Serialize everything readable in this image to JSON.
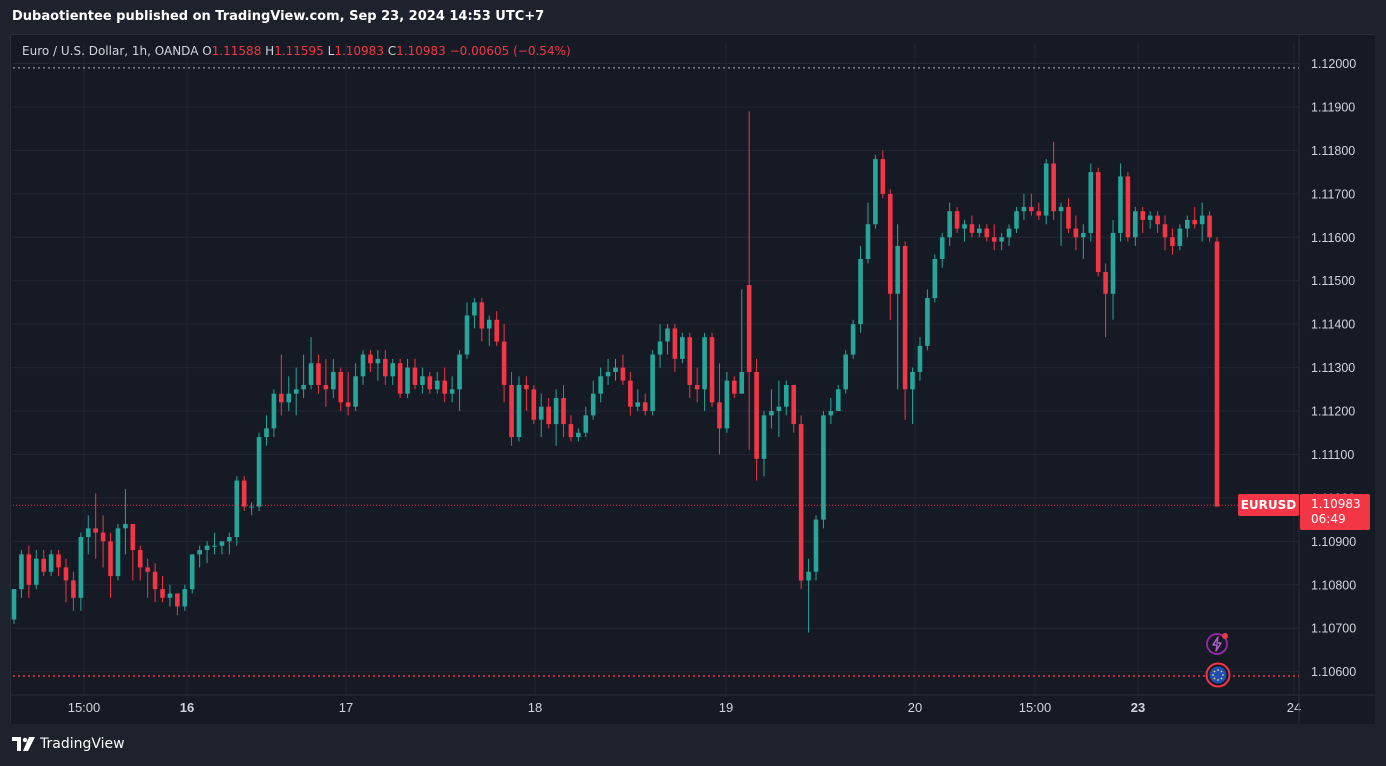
{
  "header": {
    "text": "Dubaotientee published on TradingView.com, Sep 23, 2024 14:53 UTC+7"
  },
  "legend": {
    "symbol": "Euro / U.S. Dollar, 1h, OANDA",
    "o_label": "O",
    "o_value": "1.11588",
    "h_label": "H",
    "h_value": "1.11595",
    "l_label": "L",
    "l_value": "1.10983",
    "c_label": "C",
    "c_value": "1.10983",
    "change": "−0.00605 (−0.54%)"
  },
  "symbol_tag": "EURUSD",
  "price_tag": {
    "price": "1.10983",
    "countdown": "06:49"
  },
  "brand": {
    "name": "TradingView"
  },
  "icons": {
    "flash": "lightning-icon",
    "event": "eu-flag-icon",
    "logo": "tradingview-logo-icon"
  },
  "colors": {
    "up": "#26a69a",
    "down": "#f23645",
    "background": "#161a25",
    "grid": "#232733",
    "text": "#d1d4dc"
  },
  "chart_data": {
    "type": "candlestick",
    "ylim": [
      1.1059,
      1.1203
    ],
    "yticks": [
      "1.12000",
      "1.11900",
      "1.11800",
      "1.11700",
      "1.11600",
      "1.11500",
      "1.11400",
      "1.11300",
      "1.11200",
      "1.11100",
      "1.11000",
      "1.10900",
      "1.10800",
      "1.10700",
      "1.10600"
    ],
    "xticks": [
      "15:00",
      "16",
      "17",
      "18",
      "19",
      "20",
      "15:00",
      "23",
      "24"
    ],
    "xticks_bold": [
      false,
      true,
      false,
      false,
      false,
      false,
      false,
      true,
      false
    ],
    "last_price": 1.10983,
    "dotted_levels": [
      1.1199,
      1.1059
    ],
    "candles": [
      [
        1.1072,
        1.1079,
        1.1071,
        1.1079
      ],
      [
        1.1079,
        1.1088,
        1.1077,
        1.1087
      ],
      [
        1.1087,
        1.1089,
        1.1077,
        1.108
      ],
      [
        1.108,
        1.1088,
        1.1079,
        1.1086
      ],
      [
        1.1086,
        1.1088,
        1.1082,
        1.1083
      ],
      [
        1.1083,
        1.1088,
        1.1082,
        1.1087
      ],
      [
        1.1087,
        1.1088,
        1.1082,
        1.1084
      ],
      [
        1.1084,
        1.1086,
        1.1076,
        1.1081
      ],
      [
        1.1081,
        1.1083,
        1.1074,
        1.1077
      ],
      [
        1.1077,
        1.1092,
        1.1074,
        1.1091
      ],
      [
        1.1091,
        1.1096,
        1.1087,
        1.1093
      ],
      [
        1.1093,
        1.1101,
        1.1086,
        1.1092
      ],
      [
        1.1092,
        1.1096,
        1.1084,
        1.109
      ],
      [
        1.109,
        1.1092,
        1.1077,
        1.1082
      ],
      [
        1.1082,
        1.1094,
        1.1081,
        1.1093
      ],
      [
        1.1093,
        1.1102,
        1.1087,
        1.1094
      ],
      [
        1.1094,
        1.1094,
        1.1081,
        1.1088
      ],
      [
        1.1088,
        1.1089,
        1.1081,
        1.1084
      ],
      [
        1.1084,
        1.1086,
        1.1077,
        1.1083
      ],
      [
        1.1083,
        1.1085,
        1.1076,
        1.1079
      ],
      [
        1.1079,
        1.1082,
        1.1076,
        1.1077
      ],
      [
        1.1077,
        1.108,
        1.1075,
        1.1078
      ],
      [
        1.1078,
        1.1078,
        1.1073,
        1.1075
      ],
      [
        1.1075,
        1.108,
        1.1074,
        1.1079
      ],
      [
        1.1079,
        1.1087,
        1.1078,
        1.1087
      ],
      [
        1.1087,
        1.1089,
        1.1084,
        1.1088
      ],
      [
        1.1088,
        1.109,
        1.1085,
        1.1089
      ],
      [
        1.1089,
        1.1092,
        1.1087,
        1.1089
      ],
      [
        1.1089,
        1.109,
        1.1087,
        1.109
      ],
      [
        1.109,
        1.1092,
        1.1087,
        1.1091
      ],
      [
        1.1091,
        1.1105,
        1.1089,
        1.1104
      ],
      [
        1.1104,
        1.1105,
        1.1097,
        1.1098
      ],
      [
        1.1098,
        1.1099,
        1.1096,
        1.1098
      ],
      [
        1.1098,
        1.1115,
        1.1097,
        1.1114
      ],
      [
        1.1114,
        1.1119,
        1.1112,
        1.1116
      ],
      [
        1.1116,
        1.1125,
        1.1114,
        1.1124
      ],
      [
        1.1124,
        1.1133,
        1.1119,
        1.1122
      ],
      [
        1.1122,
        1.1128,
        1.112,
        1.1124
      ],
      [
        1.1124,
        1.113,
        1.1119,
        1.1125
      ],
      [
        1.1125,
        1.1133,
        1.1123,
        1.1126
      ],
      [
        1.1126,
        1.1137,
        1.1125,
        1.1131
      ],
      [
        1.1131,
        1.1133,
        1.1124,
        1.1126
      ],
      [
        1.1126,
        1.1132,
        1.1121,
        1.1125
      ],
      [
        1.1125,
        1.1132,
        1.1123,
        1.1129
      ],
      [
        1.1129,
        1.113,
        1.112,
        1.1122
      ],
      [
        1.1122,
        1.1129,
        1.1119,
        1.1121
      ],
      [
        1.1121,
        1.1131,
        1.112,
        1.1128
      ],
      [
        1.1128,
        1.1134,
        1.1126,
        1.1133
      ],
      [
        1.1133,
        1.1134,
        1.1129,
        1.1131
      ],
      [
        1.1131,
        1.1134,
        1.1127,
        1.1132
      ],
      [
        1.1132,
        1.1134,
        1.1126,
        1.1128
      ],
      [
        1.1128,
        1.1132,
        1.1126,
        1.1131
      ],
      [
        1.1131,
        1.1132,
        1.1123,
        1.1124
      ],
      [
        1.1124,
        1.1132,
        1.1123,
        1.113
      ],
      [
        1.113,
        1.1132,
        1.1125,
        1.1126
      ],
      [
        1.1126,
        1.113,
        1.1124,
        1.1128
      ],
      [
        1.1128,
        1.1129,
        1.1124,
        1.1125
      ],
      [
        1.1125,
        1.1129,
        1.1124,
        1.1127
      ],
      [
        1.1127,
        1.113,
        1.1122,
        1.1124
      ],
      [
        1.1124,
        1.1128,
        1.1122,
        1.1125
      ],
      [
        1.1125,
        1.1134,
        1.112,
        1.1133
      ],
      [
        1.1133,
        1.1145,
        1.1132,
        1.1142
      ],
      [
        1.1142,
        1.1146,
        1.1139,
        1.1145
      ],
      [
        1.1145,
        1.1146,
        1.1136,
        1.1139
      ],
      [
        1.1139,
        1.1142,
        1.1135,
        1.1141
      ],
      [
        1.1141,
        1.1143,
        1.1135,
        1.1136
      ],
      [
        1.1136,
        1.114,
        1.1122,
        1.1126
      ],
      [
        1.1126,
        1.1129,
        1.1112,
        1.1114
      ],
      [
        1.1114,
        1.1128,
        1.1113,
        1.1126
      ],
      [
        1.1126,
        1.1128,
        1.112,
        1.1125
      ],
      [
        1.1125,
        1.1126,
        1.1117,
        1.1118
      ],
      [
        1.1118,
        1.1124,
        1.1114,
        1.1121
      ],
      [
        1.1121,
        1.1123,
        1.1116,
        1.1117
      ],
      [
        1.1117,
        1.1125,
        1.1112,
        1.1123
      ],
      [
        1.1123,
        1.1126,
        1.1114,
        1.1117
      ],
      [
        1.1117,
        1.1119,
        1.1113,
        1.1114
      ],
      [
        1.1114,
        1.1116,
        1.1113,
        1.1115
      ],
      [
        1.1115,
        1.1121,
        1.1114,
        1.1119
      ],
      [
        1.1119,
        1.1127,
        1.1118,
        1.1124
      ],
      [
        1.1124,
        1.113,
        1.1122,
        1.1128
      ],
      [
        1.1128,
        1.1132,
        1.1126,
        1.1129
      ],
      [
        1.1129,
        1.1132,
        1.1127,
        1.113
      ],
      [
        1.113,
        1.1133,
        1.1126,
        1.1127
      ],
      [
        1.1127,
        1.1129,
        1.1119,
        1.1121
      ],
      [
        1.1121,
        1.1125,
        1.112,
        1.1122
      ],
      [
        1.1122,
        1.1124,
        1.1119,
        1.112
      ],
      [
        1.112,
        1.1134,
        1.1119,
        1.1133
      ],
      [
        1.1133,
        1.114,
        1.113,
        1.1136
      ],
      [
        1.1136,
        1.114,
        1.1133,
        1.1139
      ],
      [
        1.1139,
        1.114,
        1.1129,
        1.1132
      ],
      [
        1.1132,
        1.1138,
        1.1131,
        1.1137
      ],
      [
        1.1137,
        1.1138,
        1.1123,
        1.1126
      ],
      [
        1.1126,
        1.113,
        1.1122,
        1.1125
      ],
      [
        1.1125,
        1.1138,
        1.112,
        1.1137
      ],
      [
        1.1137,
        1.1138,
        1.1121,
        1.1122
      ],
      [
        1.1122,
        1.1131,
        1.111,
        1.1116
      ],
      [
        1.1116,
        1.1129,
        1.1115,
        1.1127
      ],
      [
        1.1127,
        1.1128,
        1.1123,
        1.1124
      ],
      [
        1.1124,
        1.1148,
        1.1124,
        1.1129
      ],
      [
        1.1149,
        1.1189,
        1.1111,
        1.1129
      ],
      [
        1.1129,
        1.1132,
        1.1104,
        1.1109
      ],
      [
        1.1109,
        1.112,
        1.1105,
        1.1119
      ],
      [
        1.1119,
        1.1125,
        1.1116,
        1.112
      ],
      [
        1.112,
        1.1127,
        1.1114,
        1.1121
      ],
      [
        1.1121,
        1.1127,
        1.1119,
        1.1126
      ],
      [
        1.1126,
        1.1126,
        1.1115,
        1.1117
      ],
      [
        1.1117,
        1.1119,
        1.1079,
        1.1081
      ],
      [
        1.1081,
        1.1086,
        1.1069,
        1.1083
      ],
      [
        1.1083,
        1.1096,
        1.1081,
        1.1095
      ],
      [
        1.1095,
        1.112,
        1.1093,
        1.1119
      ],
      [
        1.1119,
        1.1123,
        1.1117,
        1.112
      ],
      [
        1.112,
        1.1126,
        1.112,
        1.1125
      ],
      [
        1.1125,
        1.1134,
        1.1124,
        1.1133
      ],
      [
        1.1133,
        1.1141,
        1.1132,
        1.114
      ],
      [
        1.114,
        1.1158,
        1.1138,
        1.1155
      ],
      [
        1.1155,
        1.1168,
        1.1154,
        1.1163
      ],
      [
        1.1163,
        1.1179,
        1.1162,
        1.1178
      ],
      [
        1.1178,
        1.118,
        1.1169,
        1.117
      ],
      [
        1.117,
        1.1171,
        1.1141,
        1.1147
      ],
      [
        1.1147,
        1.1163,
        1.1125,
        1.1158
      ],
      [
        1.1158,
        1.1159,
        1.1118,
        1.1125
      ],
      [
        1.1125,
        1.113,
        1.1117,
        1.1129
      ],
      [
        1.1129,
        1.1137,
        1.1127,
        1.1135
      ],
      [
        1.1135,
        1.1148,
        1.1134,
        1.1146
      ],
      [
        1.1146,
        1.1156,
        1.1145,
        1.1155
      ],
      [
        1.1155,
        1.1161,
        1.1153,
        1.116
      ],
      [
        1.116,
        1.1168,
        1.1158,
        1.1166
      ],
      [
        1.1166,
        1.1167,
        1.1161,
        1.1162
      ],
      [
        1.1162,
        1.1164,
        1.1159,
        1.1163
      ],
      [
        1.1163,
        1.1165,
        1.116,
        1.1161
      ],
      [
        1.1161,
        1.1163,
        1.116,
        1.1162
      ],
      [
        1.1162,
        1.1163,
        1.1159,
        1.116
      ],
      [
        1.116,
        1.1163,
        1.1157,
        1.1159
      ],
      [
        1.1159,
        1.1161,
        1.1157,
        1.116
      ],
      [
        1.116,
        1.1163,
        1.1158,
        1.1162
      ],
      [
        1.1162,
        1.1167,
        1.1161,
        1.1166
      ],
      [
        1.1166,
        1.117,
        1.1164,
        1.1167
      ],
      [
        1.1167,
        1.117,
        1.1165,
        1.1166
      ],
      [
        1.1166,
        1.1168,
        1.1164,
        1.1165
      ],
      [
        1.1165,
        1.1178,
        1.1163,
        1.1177
      ],
      [
        1.1177,
        1.1182,
        1.1164,
        1.1166
      ],
      [
        1.1166,
        1.1168,
        1.1158,
        1.1167
      ],
      [
        1.1167,
        1.1169,
        1.1161,
        1.1162
      ],
      [
        1.1162,
        1.1165,
        1.1157,
        1.116
      ],
      [
        1.116,
        1.1163,
        1.1155,
        1.1161
      ],
      [
        1.1161,
        1.1177,
        1.1159,
        1.1175
      ],
      [
        1.1175,
        1.1176,
        1.1151,
        1.1152
      ],
      [
        1.1152,
        1.1154,
        1.1137,
        1.1147
      ],
      [
        1.1147,
        1.1164,
        1.1141,
        1.1161
      ],
      [
        1.1161,
        1.1177,
        1.1159,
        1.1174
      ],
      [
        1.1174,
        1.1175,
        1.1159,
        1.116
      ],
      [
        1.116,
        1.1167,
        1.1158,
        1.1166
      ],
      [
        1.1166,
        1.1167,
        1.1161,
        1.1164
      ],
      [
        1.1164,
        1.1166,
        1.1162,
        1.1165
      ],
      [
        1.1165,
        1.1166,
        1.1161,
        1.1163
      ],
      [
        1.1163,
        1.1165,
        1.1157,
        1.116
      ],
      [
        1.116,
        1.1162,
        1.1156,
        1.1158
      ],
      [
        1.1158,
        1.1163,
        1.1157,
        1.1162
      ],
      [
        1.1162,
        1.1165,
        1.116,
        1.1164
      ],
      [
        1.1164,
        1.1167,
        1.1162,
        1.1163
      ],
      [
        1.1163,
        1.1168,
        1.1159,
        1.1165
      ],
      [
        1.1165,
        1.1166,
        1.1159,
        1.116
      ],
      [
        1.1159,
        1.116,
        1.1098,
        1.1098
      ]
    ]
  }
}
